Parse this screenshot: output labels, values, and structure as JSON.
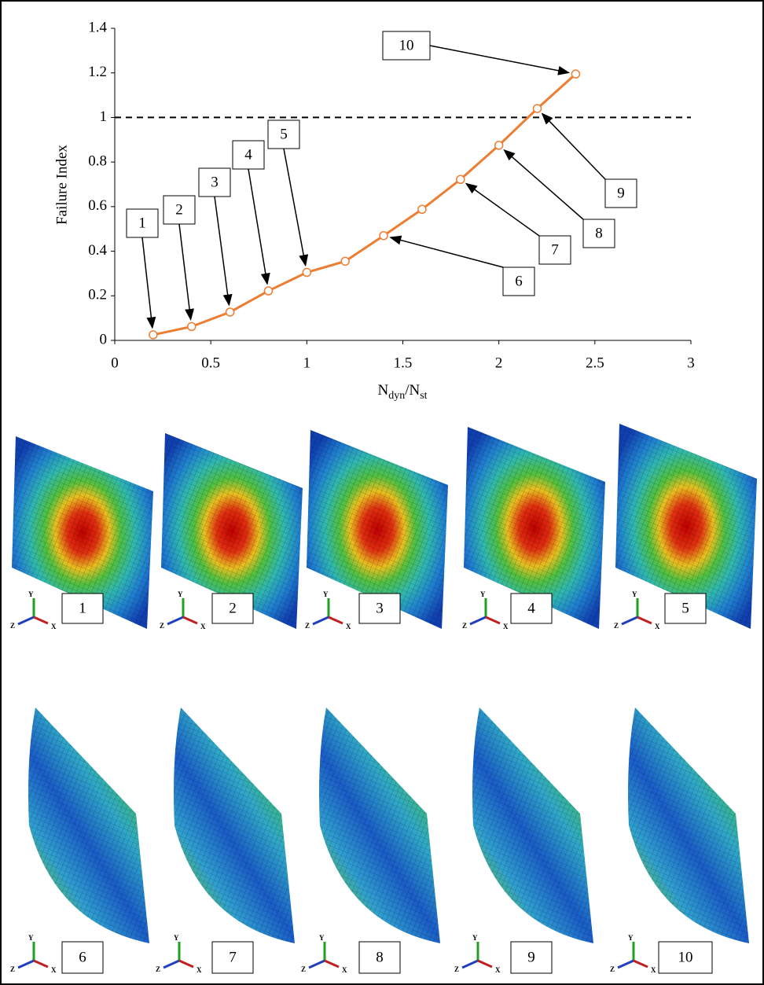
{
  "chart_data": {
    "type": "line",
    "y_label": "Failure Index",
    "x_label_parts": [
      "N",
      "dyn",
      "/N",
      "st"
    ],
    "x": [
      0.2,
      0.4,
      0.6,
      0.8,
      1.0,
      1.2,
      1.4,
      1.6,
      1.8,
      2.0,
      2.2,
      2.4
    ],
    "series": [
      {
        "color": "#ed7d31",
        "values": [
          0.025,
          0.062,
          0.127,
          0.222,
          0.305,
          0.355,
          0.47,
          0.588,
          0.722,
          0.875,
          1.04,
          1.195
        ]
      }
    ],
    "xlim": [
      0,
      3
    ],
    "xticks": [
      0,
      0.5,
      1,
      1.5,
      2,
      2.5,
      3
    ],
    "ylim": [
      0,
      1.4
    ],
    "yticks": [
      0,
      0.2,
      0.4,
      0.6,
      0.8,
      1,
      1.2,
      1.4
    ],
    "reference_line": 1,
    "annotations": [
      "1",
      "2",
      "3",
      "4",
      "5",
      "6",
      "7",
      "8",
      "9",
      "10"
    ]
  },
  "panels": [
    "1",
    "2",
    "3",
    "4",
    "5",
    "6",
    "7",
    "8",
    "9",
    "10"
  ],
  "triad_labels": [
    "Y",
    "Z",
    "X"
  ]
}
